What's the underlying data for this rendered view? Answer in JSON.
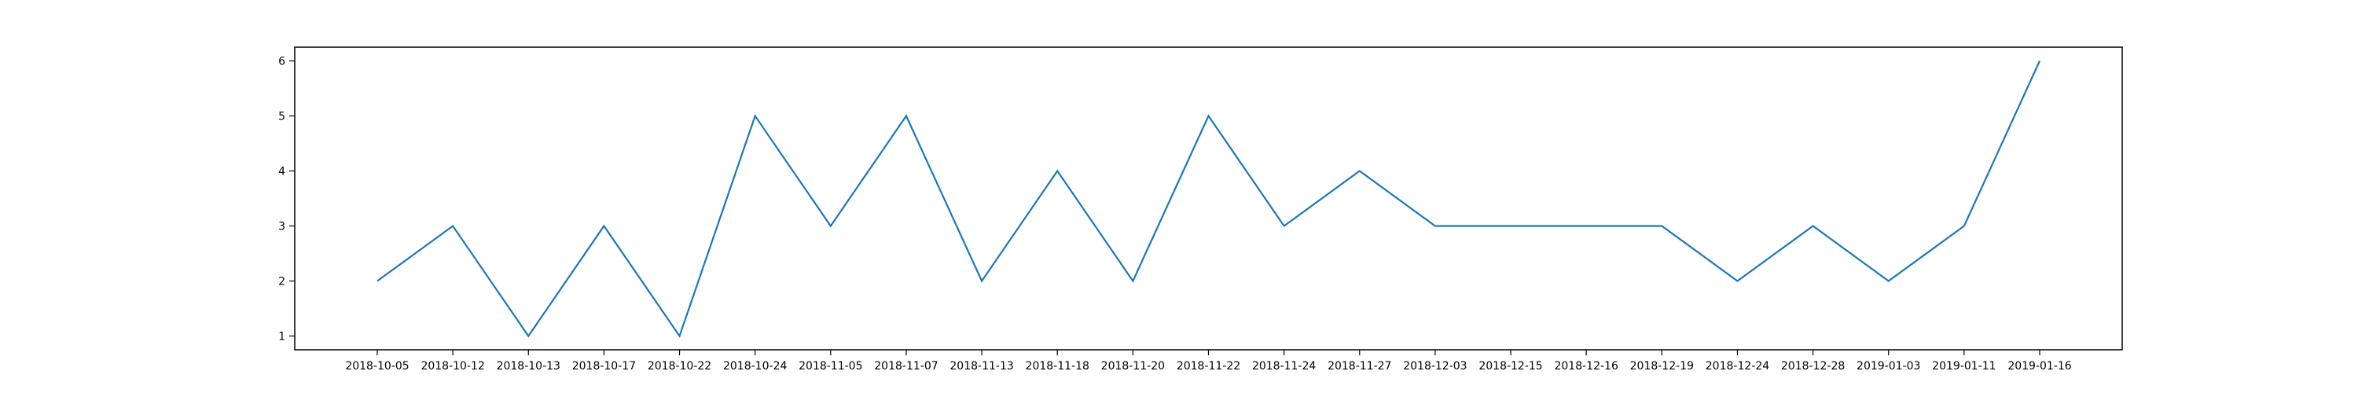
{
  "chart_data": {
    "type": "line",
    "title": "",
    "xlabel": "",
    "ylabel": "",
    "categories": [
      "2018-10-05",
      "2018-10-12",
      "2018-10-13",
      "2018-10-17",
      "2018-10-22",
      "2018-10-24",
      "2018-11-05",
      "2018-11-07",
      "2018-11-13",
      "2018-11-18",
      "2018-11-20",
      "2018-11-22",
      "2018-11-24",
      "2018-11-27",
      "2018-12-03",
      "2018-12-15",
      "2018-12-16",
      "2018-12-19",
      "2018-12-24",
      "2018-12-28",
      "2019-01-03",
      "2019-01-11",
      "2019-01-16"
    ],
    "series": [
      {
        "values": [
          2,
          3,
          1,
          3,
          1,
          5,
          3,
          5,
          2,
          4,
          2,
          5,
          3,
          4,
          3,
          3,
          3,
          3,
          2,
          3,
          2,
          3,
          6
        ],
        "color": "#1f77b4"
      }
    ],
    "ylim": [
      0.75,
      6.25
    ],
    "yticks": [
      1,
      2,
      3,
      4,
      5,
      6
    ],
    "grid": false,
    "legend": "none"
  }
}
